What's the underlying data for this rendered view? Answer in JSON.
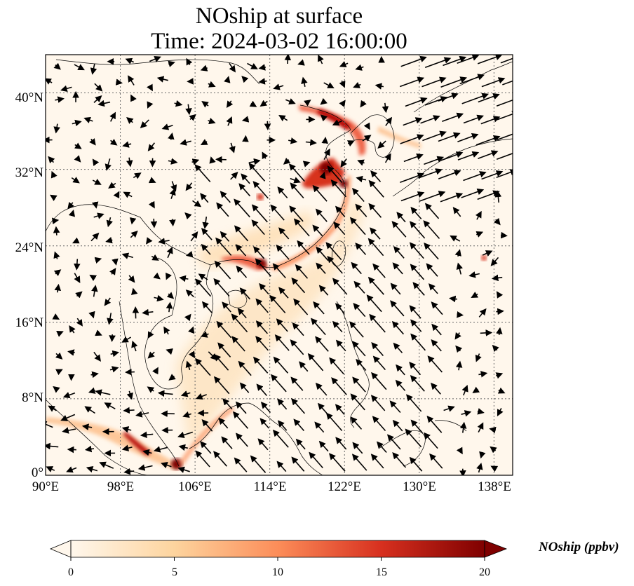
{
  "title_line1": "NOship at surface",
  "title_line2": "Time: 2024-03-02 16:00:00",
  "map": {
    "extent": {
      "lon": [
        90,
        140
      ],
      "lat": [
        0,
        44
      ]
    },
    "gridlines": true,
    "variable": "NOship",
    "units": "ppbv",
    "vectors": "wind"
  },
  "lat_ticks": [
    "0°",
    "8°N",
    "16°N",
    "24°N",
    "32°N",
    "40°N"
  ],
  "lon_ticks": [
    "90°E",
    "98°E",
    "106°E",
    "114°E",
    "122°E",
    "130°E",
    "138°E"
  ],
  "colorbar": {
    "label": "NOship (ppbv)",
    "ticks": [
      "0",
      "5",
      "10",
      "15",
      "20"
    ],
    "range": [
      0,
      20
    ],
    "extend": "both",
    "colormap": "OrRd",
    "colors": [
      "#fff7ec",
      "#fdd49e",
      "#fc8d59",
      "#d7301f",
      "#7f0000"
    ]
  }
}
